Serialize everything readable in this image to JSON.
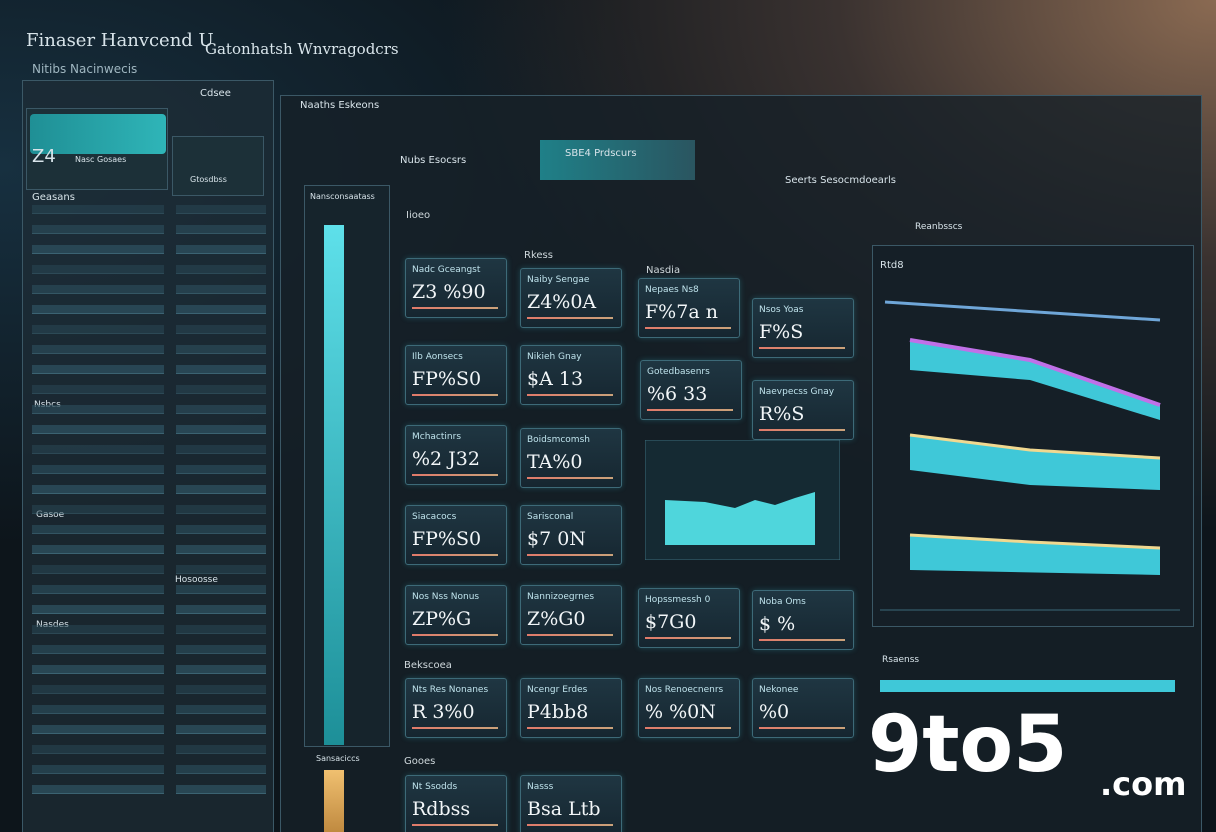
{
  "header": {
    "title": "Finaser Hanvcend U",
    "subtitle": "Gatonhatsh Wnvragodcrs",
    "nav": "Nitibs Nacinwecis"
  },
  "toolbar": {
    "items": [
      "Naaths Eskeons",
      "Nubs Esocsrs",
      "SBE4 Prdscurs",
      "Seerts Sesocmdoearls",
      "Reanbsscs"
    ]
  },
  "sidebar": {
    "tab": "Cdsee",
    "widgets": [
      {
        "value": "Z4",
        "label": "Nasc Gosaes"
      },
      {
        "label": "Gtosdbss"
      }
    ],
    "heading": "Geasans",
    "sections": [
      "Nsbcs",
      "Gasoe",
      "Hosoosse",
      "Nasdes"
    ]
  },
  "meter": {
    "label": "Nansconsaatass",
    "footer": "Sansaciccs"
  },
  "sections": {
    "overview": "Iioeo",
    "markets": "Rkess",
    "assets": "Nasdia",
    "funds": "Bekscoea",
    "goals": "Gooes"
  },
  "cards": [
    {
      "label": "Nadc Gceangst",
      "value": "Z3 %90"
    },
    {
      "label": "Naiby Sengae",
      "value": "Z4%0A"
    },
    {
      "label": "Nepaes Ns8",
      "value": "F%7a n"
    },
    {
      "label": "Nsos Yoas",
      "value": "F%S"
    },
    {
      "label": "Ilb Aonsecs",
      "value": "FP%S0"
    },
    {
      "label": "Nikieh Gnay",
      "value": "$A 13"
    },
    {
      "label": "Gotedbasenrs",
      "value": "%6 33"
    },
    {
      "label": "Naevpecss Gnay",
      "value": "R%S"
    },
    {
      "label": "Mchactinrs",
      "value": "%2 J32"
    },
    {
      "label": "Boidsmcomsh",
      "value": "TA%0"
    },
    {
      "label": "Siacacocs",
      "value": "FP%S0"
    },
    {
      "label": "Sarisconal",
      "value": "$7 0N"
    },
    {
      "label": "Nos Nss Nonus",
      "value": "ZP%G"
    },
    {
      "label": "Nannizoegrnes",
      "value": "Z%G0"
    },
    {
      "label": "Hopssmessh 0",
      "value": "$7G0"
    },
    {
      "label": "Noba Oms",
      "value": "$ %"
    },
    {
      "label": "Nts Res Nonanes",
      "value": "R 3%0"
    },
    {
      "label": "Ncengr Erdes",
      "value": "P4bb8"
    },
    {
      "label": "Nos Renoecnenrs",
      "value": "% %0N"
    },
    {
      "label": "Nekonee",
      "value": "%0"
    },
    {
      "label": "Nt Ssodds",
      "value": "Rdbss"
    },
    {
      "label": "Nasss",
      "value": "Bsa Ltb"
    }
  ],
  "right_panel": {
    "title": "Rtd8",
    "subtitle": "Rsaenss"
  },
  "watermark": {
    "brand": "9to5",
    "suffix": ".com"
  }
}
